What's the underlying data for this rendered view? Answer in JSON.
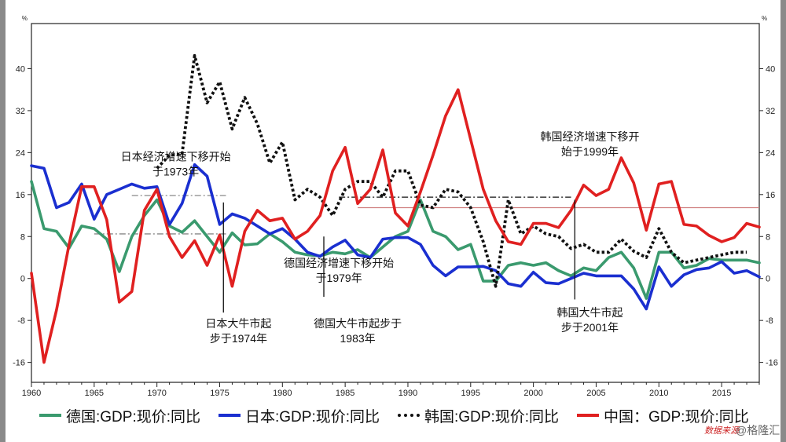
{
  "chart_data": {
    "type": "line",
    "x_start": 1960,
    "x_end": 2018,
    "ylim": [
      -19.8,
      48.6
    ],
    "y_unit_label": "%",
    "y_ticks": [
      40,
      32,
      24,
      16,
      8,
      0,
      -8,
      -16
    ],
    "x_ticks": [
      1960,
      1965,
      1970,
      1975,
      1980,
      1985,
      1990,
      1995,
      2000,
      2005,
      2010,
      2015
    ],
    "series": [
      {
        "name": "德国:GDP:现价:同比",
        "color": "#3a9a6e",
        "dash": "solid",
        "x": [
          1960,
          1961,
          1962,
          1963,
          1964,
          1965,
          1966,
          1967,
          1968,
          1969,
          1970,
          1971,
          1972,
          1973,
          1974,
          1975,
          1976,
          1977,
          1978,
          1979,
          1980,
          1981,
          1982,
          1983,
          1984,
          1985,
          1986,
          1987,
          1988,
          1989,
          1990,
          1991,
          1992,
          1993,
          1994,
          1995,
          1996,
          1997,
          1998,
          1999,
          2000,
          2001,
          2002,
          2003,
          2004,
          2005,
          2006,
          2007,
          2008,
          2009,
          2010,
          2011,
          2012,
          2013,
          2014,
          2015,
          2016,
          2017,
          2018
        ],
        "values": [
          18.5,
          9.5,
          9,
          5.8,
          10,
          9.5,
          7.5,
          1.3,
          8,
          12,
          15,
          10,
          8.8,
          11,
          8,
          5,
          8.7,
          6.4,
          6.6,
          8.5,
          7,
          5,
          4.5,
          4.3,
          5,
          4.7,
          5.5,
          4,
          6,
          8,
          9,
          15,
          9,
          8,
          5.5,
          6.5,
          -0.5,
          -0.5,
          2.5,
          3,
          2.5,
          3,
          1.5,
          0.5,
          2,
          1.5,
          4,
          5,
          2,
          -3.8,
          5,
          5,
          2,
          2.5,
          3.8,
          3.5,
          3.5,
          3.5,
          3
        ]
      },
      {
        "name": "日本:GDP:现价:同比",
        "color": "#1a2fd0",
        "dash": "solid",
        "x": [
          1960,
          1961,
          1962,
          1963,
          1964,
          1965,
          1966,
          1967,
          1968,
          1969,
          1970,
          1971,
          1972,
          1973,
          1974,
          1975,
          1976,
          1977,
          1978,
          1979,
          1980,
          1981,
          1982,
          1983,
          1984,
          1985,
          1986,
          1987,
          1988,
          1989,
          1990,
          1991,
          1992,
          1993,
          1994,
          1995,
          1996,
          1997,
          1998,
          1999,
          2000,
          2001,
          2002,
          2003,
          2004,
          2005,
          2006,
          2007,
          2008,
          2009,
          2010,
          2011,
          2012,
          2013,
          2014,
          2015,
          2016,
          2017,
          2018
        ],
        "values": [
          21.5,
          21,
          13.5,
          14.5,
          18,
          11.3,
          16,
          17,
          18,
          17.2,
          17.5,
          10.3,
          14.3,
          21.7,
          19.5,
          10.3,
          12.3,
          11.5,
          10,
          8.5,
          9.5,
          7.5,
          5,
          4.2,
          6,
          7.3,
          4.5,
          4,
          7.5,
          7.8,
          7.8,
          6.5,
          2.5,
          0.5,
          2.2,
          2.2,
          2.3,
          1.5,
          -1,
          -1.5,
          1.2,
          -0.8,
          -1,
          0,
          1,
          0.5,
          0.5,
          0.5,
          -2,
          -5.8,
          2.2,
          -1.5,
          0.7,
          1.7,
          2,
          3.2,
          1,
          1.5,
          0.3
        ]
      },
      {
        "name": "韩国:GDP:现价:同比",
        "color": "#111111",
        "dash": "dotted",
        "x": [
          1970,
          1971,
          1972,
          1973,
          1974,
          1975,
          1976,
          1977,
          1978,
          1979,
          1980,
          1981,
          1982,
          1983,
          1984,
          1985,
          1986,
          1987,
          1988,
          1989,
          1990,
          1991,
          1992,
          1993,
          1994,
          1995,
          1996,
          1997,
          1998,
          1999,
          2000,
          2001,
          2002,
          2003,
          2004,
          2005,
          2006,
          2007,
          2008,
          2009,
          2010,
          2011,
          2012,
          2013,
          2014,
          2015,
          2016,
          2017
        ],
        "values": [
          21,
          23.5,
          23.7,
          42.5,
          33.5,
          37.5,
          28.5,
          34.5,
          29.5,
          22,
          26,
          15,
          17,
          15.5,
          12,
          17,
          18.5,
          18.5,
          15.5,
          20.5,
          20.5,
          14,
          13.5,
          17,
          16.5,
          13.5,
          7,
          -1.5,
          15,
          8.5,
          10,
          8.5,
          8,
          5.7,
          6.5,
          5,
          5,
          7.5,
          5.2,
          4,
          9.5,
          5,
          3,
          3.5,
          4,
          4.5,
          5,
          5
        ]
      },
      {
        "name": "中国：GDP:现价:同比",
        "color": "#e02020",
        "dash": "solid",
        "x": [
          1960,
          1961,
          1962,
          1963,
          1964,
          1965,
          1966,
          1967,
          1968,
          1969,
          1970,
          1971,
          1972,
          1973,
          1974,
          1975,
          1976,
          1977,
          1978,
          1979,
          1980,
          1981,
          1982,
          1983,
          1984,
          1985,
          1986,
          1987,
          1988,
          1989,
          1990,
          1991,
          1992,
          1993,
          1994,
          1995,
          1996,
          1997,
          1998,
          1999,
          2000,
          2001,
          2002,
          2003,
          2004,
          2005,
          2006,
          2007,
          2008,
          2009,
          2010,
          2011,
          2012,
          2013,
          2014,
          2015,
          2016,
          2017,
          2018
        ],
        "values": [
          1,
          -16,
          -6,
          6.5,
          17.5,
          17.5,
          11.2,
          -4.5,
          -2.5,
          13,
          17,
          8,
          4,
          7.2,
          2.5,
          8.3,
          -1.5,
          9,
          13,
          11,
          11.5,
          7.5,
          9,
          12,
          20.5,
          25,
          14.3,
          17,
          24.5,
          12.5,
          10,
          16.5,
          23.5,
          31,
          36,
          26.5,
          17,
          11,
          7,
          6.5,
          10.5,
          10.5,
          9.7,
          13,
          17.8,
          15.8,
          17,
          23,
          18.2,
          9.2,
          18,
          18.5,
          10.3,
          10,
          8.2,
          7,
          7.8,
          10.5,
          9.8
        ]
      }
    ],
    "reference_lines": [
      {
        "x_from": 1968,
        "x_to": 1975.5,
        "y": 15.8,
        "color": "#888888",
        "dash": "dashdot"
      },
      {
        "x_from": 1965,
        "x_to": 1975.5,
        "y": 8.5,
        "color": "#888888",
        "dash": "dashdot"
      },
      {
        "x_from": 1984.5,
        "x_to": 2003,
        "y": 15.5,
        "color": "#111111",
        "dash": "dashdot"
      },
      {
        "x_from": 1986,
        "x_to": 2018,
        "y": 13.5,
        "color": "#d08080",
        "dash": "solid"
      }
    ],
    "markers": [
      {
        "x": 1975.3,
        "y_from": 14.5,
        "y_to": -6.5
      },
      {
        "x": 1983.3,
        "y_from": 8,
        "y_to": -3.5
      },
      {
        "x": 2003.3,
        "y_from": 15,
        "y_to": -4
      }
    ],
    "annotations": [
      {
        "id": "jp-slow",
        "lines": [
          "日本经济增速下移开始",
          "于1973年"
        ],
        "x": 1971.5,
        "y": 22.5
      },
      {
        "id": "jp-bull",
        "lines": [
          "日本大牛市起",
          "步于1974年"
        ],
        "x": 1976.5,
        "y": -9.3
      },
      {
        "id": "de-slow",
        "lines": [
          "德国经济增速下移开始",
          "于1979年"
        ],
        "x": 1984.5,
        "y": 2.2
      },
      {
        "id": "de-bull",
        "lines": [
          "德国大牛市起步于",
          "1983年"
        ],
        "x": 1986,
        "y": -9.3
      },
      {
        "id": "kr-slow",
        "lines": [
          "韩国经济增速下移开",
          "始于1999年"
        ],
        "x": 2004.5,
        "y": 26.3
      },
      {
        "id": "kr-bull",
        "lines": [
          "韩国大牛市起",
          "步于2001年"
        ],
        "x": 2004.5,
        "y": -7.2
      }
    ]
  },
  "legend": {
    "germany": "德国:GDP:现价:同比",
    "japan": "日本:GDP:现价:同比",
    "korea": "韩国:GDP:现价:同比",
    "china": "中国：GDP:现价:同比"
  },
  "source_text": "数据来源",
  "watermark": "@格隆汇"
}
